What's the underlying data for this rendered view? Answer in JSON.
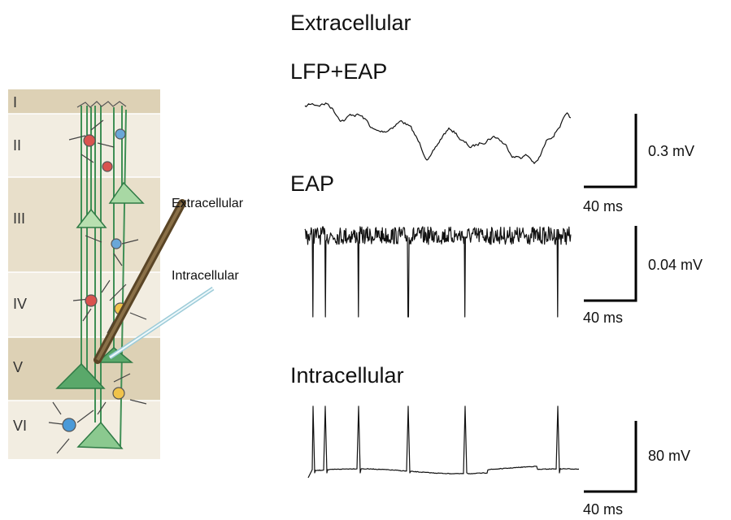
{
  "layers": [
    "I",
    "II",
    "III",
    "IV",
    "V",
    "VI"
  ],
  "electrodes": {
    "extracellular": "Extracellular",
    "intracellular": "Intracellular"
  },
  "panels": {
    "title": "Extracellular",
    "lfp_eap": "LFP+EAP",
    "eap": "EAP",
    "intracellular": "Intracellular"
  },
  "scale_bars": [
    {
      "amplitude": "0.3 mV",
      "time": "40 ms"
    },
    {
      "amplitude": "0.04 mV",
      "time": "40 ms"
    },
    {
      "amplitude": "80  mV",
      "time": "40 ms"
    }
  ]
}
